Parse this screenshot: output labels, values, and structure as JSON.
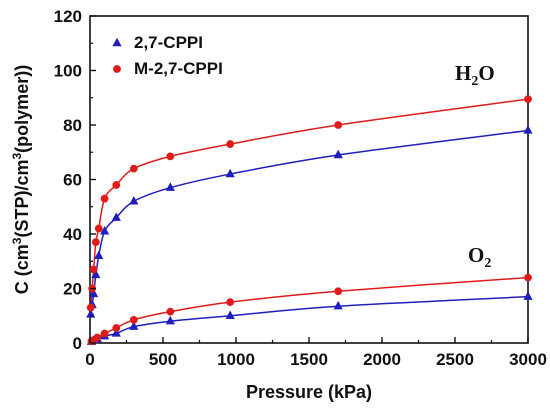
{
  "chart_data": {
    "type": "scatter",
    "xlabel": "Pressure (kPa)",
    "ylabel_parts": [
      "C (cm",
      "3",
      "(STP)/cm",
      "3",
      "(polymer))"
    ],
    "xlim": [
      0,
      3000
    ],
    "ylim": [
      0,
      120
    ],
    "xticks": [
      0,
      500,
      1000,
      1500,
      2000,
      2500,
      3000
    ],
    "yticks": [
      0,
      20,
      40,
      60,
      80,
      100,
      120
    ],
    "grid": false,
    "legend_position": "top-left",
    "annotations": [
      {
        "text": "H",
        "sub": "2",
        "tail": "O"
      },
      {
        "text": "O",
        "sub": "2",
        "tail": ""
      }
    ],
    "series": [
      {
        "name": "2,7-CPPI",
        "marker": "triangle",
        "color": "#1f1fbf",
        "group": "H2O",
        "x": [
          5,
          15,
          25,
          40,
          60,
          100,
          180,
          300,
          550,
          960,
          1700,
          3000
        ],
        "y": [
          10.5,
          14,
          18,
          25,
          32,
          41,
          46,
          52,
          57,
          62,
          69,
          78
        ]
      },
      {
        "name": "M-2,7-CPPI",
        "marker": "circle",
        "color": "#e01b1b",
        "group": "H2O",
        "x": [
          5,
          15,
          25,
          40,
          60,
          100,
          180,
          300,
          550,
          960,
          1700,
          3000
        ],
        "y": [
          13,
          20,
          27,
          37,
          42,
          53,
          58,
          64,
          68.5,
          73,
          80,
          89.5
        ]
      },
      {
        "name": "2,7-CPPI",
        "marker": "triangle",
        "color": "#1f1fbf",
        "group": "O2",
        "x": [
          10,
          30,
          50,
          100,
          180,
          300,
          550,
          960,
          1700,
          3000
        ],
        "y": [
          0.5,
          1,
          1.5,
          2.5,
          3.5,
          6,
          8,
          10,
          13.5,
          17
        ]
      },
      {
        "name": "M-2,7-CPPI",
        "marker": "circle",
        "color": "#e01b1b",
        "group": "O2",
        "x": [
          10,
          30,
          50,
          100,
          180,
          300,
          550,
          960,
          1700,
          3000
        ],
        "y": [
          0.6,
          1.2,
          2,
          3.5,
          5.5,
          8.5,
          11.5,
          15,
          19,
          24
        ]
      }
    ],
    "legend": [
      {
        "label": "2,7-CPPI",
        "marker": "triangle",
        "color": "#1f1fbf"
      },
      {
        "label": "M-2,7-CPPI",
        "marker": "circle",
        "color": "#e01b1b"
      }
    ]
  }
}
